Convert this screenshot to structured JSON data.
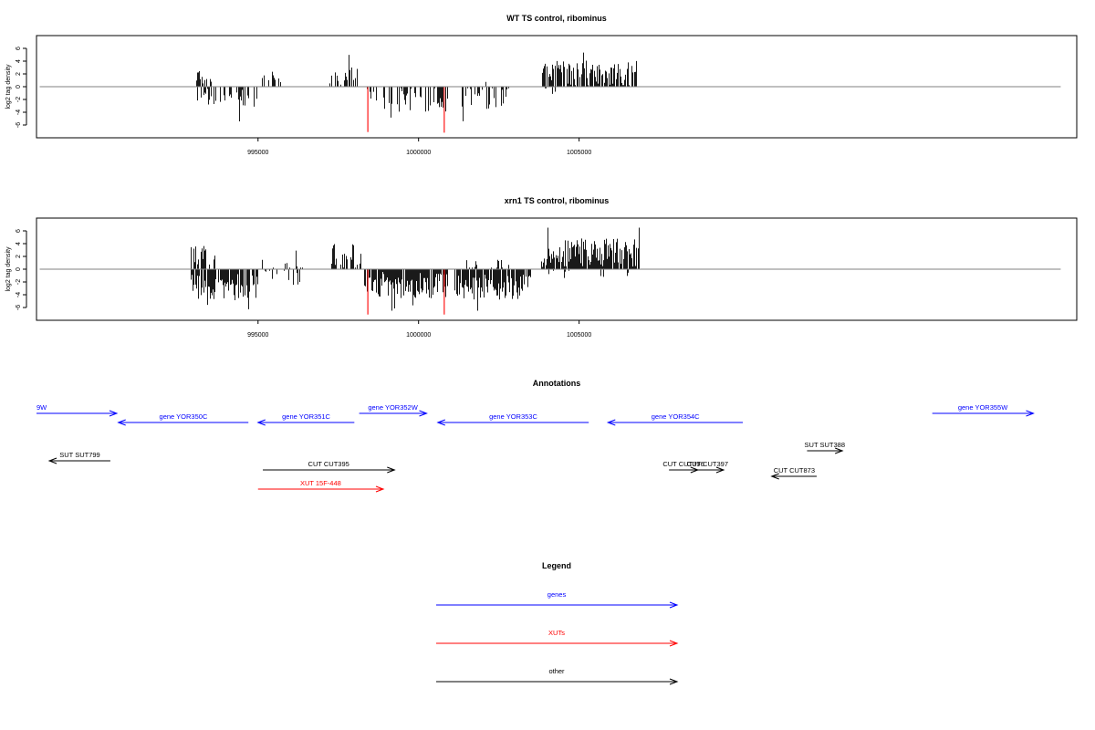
{
  "chart_data": [
    {
      "type": "bar",
      "title": "WT TS control, ribominus",
      "ylabel": "log2 tag density",
      "xlim": [
        988100,
        1020500
      ],
      "ylim": [
        -8,
        8
      ],
      "yticks": [
        -6,
        -4,
        -2,
        0,
        2,
        4,
        6
      ],
      "xticks": [
        995000,
        1000000,
        1005000
      ],
      "seed": 11,
      "highlight_color": "#ff0000",
      "bar_color": "#000000",
      "baseline_color": "#808080",
      "highlights": [
        {
          "x": 998420,
          "value": -7.1
        },
        {
          "x": 1000800,
          "value": -7.2
        }
      ],
      "regions": [
        {
          "from": 993070,
          "to": 993550,
          "mean": 1.6,
          "spread": 0.9,
          "sign": 1,
          "density": 0.55
        },
        {
          "from": 993090,
          "to": 993700,
          "mean": -1.6,
          "spread": 0.8,
          "sign": -1,
          "density": 0.3
        },
        {
          "from": 993800,
          "to": 995000,
          "mean": -1.8,
          "spread": 1.0,
          "sign": -1,
          "density": 0.45
        },
        {
          "from": 995100,
          "to": 995800,
          "mean": 1.0,
          "spread": 0.5,
          "sign": 1,
          "density": 0.2
        },
        {
          "from": 996700,
          "to": 996750,
          "mean": 1.2,
          "spread": 0.3,
          "sign": 1,
          "density": 0.5
        },
        {
          "from": 997200,
          "to": 998100,
          "mean": 1.7,
          "spread": 0.9,
          "sign": 1,
          "density": 0.6
        },
        {
          "from": 998300,
          "to": 1000900,
          "mean": -2.0,
          "spread": 1.2,
          "sign": -1,
          "density": 0.45
        },
        {
          "from": 1001300,
          "to": 1002900,
          "mean": -1.8,
          "spread": 1.1,
          "sign": -1,
          "density": 0.5
        },
        {
          "from": 1002000,
          "to": 1002100,
          "mean": 0.6,
          "spread": 0.2,
          "sign": 1,
          "density": 0.3
        },
        {
          "from": 1003800,
          "to": 1004400,
          "mean": -0.8,
          "spread": 0.5,
          "sign": -1,
          "density": 0.15
        },
        {
          "from": 1003800,
          "to": 1006800,
          "mean": 2.0,
          "spread": 1.3,
          "sign": 1,
          "density": 0.75
        }
      ]
    },
    {
      "type": "bar",
      "title": "xrn1 TS control, ribominus",
      "ylabel": "log2 tag density",
      "xlim": [
        988100,
        1020500
      ],
      "ylim": [
        -8,
        8
      ],
      "yticks": [
        -6,
        -4,
        -2,
        0,
        2,
        4,
        6
      ],
      "xticks": [
        995000,
        1000000,
        1005000
      ],
      "seed": 29,
      "highlight_color": "#ff0000",
      "bar_color": "#000000",
      "baseline_color": "#808080",
      "highlights": [
        {
          "x": 998420,
          "value": -7.1
        },
        {
          "x": 1000800,
          "value": -7.1
        }
      ],
      "regions": [
        {
          "from": 992900,
          "to": 993700,
          "mean": 2.0,
          "spread": 1.1,
          "sign": 1,
          "density": 0.6
        },
        {
          "from": 992900,
          "to": 995000,
          "mean": -2.8,
          "spread": 1.3,
          "sign": -1,
          "density": 0.8
        },
        {
          "from": 995100,
          "to": 996500,
          "mean": 1.0,
          "spread": 0.8,
          "sign": 1,
          "density": 0.25
        },
        {
          "from": 995200,
          "to": 996300,
          "mean": -1.2,
          "spread": 0.8,
          "sign": -1,
          "density": 0.25
        },
        {
          "from": 997200,
          "to": 998200,
          "mean": 2.0,
          "spread": 1.3,
          "sign": 1,
          "density": 0.65
        },
        {
          "from": 998300,
          "to": 1000900,
          "mean": -2.5,
          "spread": 1.3,
          "sign": -1,
          "density": 0.85
        },
        {
          "from": 1001100,
          "to": 1003500,
          "mean": -2.7,
          "spread": 1.3,
          "sign": -1,
          "density": 0.85
        },
        {
          "from": 1001200,
          "to": 1002800,
          "mean": 0.8,
          "spread": 0.5,
          "sign": 1,
          "density": 0.15
        },
        {
          "from": 1003800,
          "to": 1006900,
          "mean": 2.6,
          "spread": 1.4,
          "sign": 1,
          "density": 0.9
        },
        {
          "from": 1004000,
          "to": 1006900,
          "mean": -0.8,
          "spread": 0.6,
          "sign": -1,
          "density": 0.12
        }
      ]
    }
  ],
  "annotations": {
    "title": "Annotations",
    "features": [
      {
        "label": "9W",
        "color": "#0000ff",
        "from": 988100,
        "to": 990600,
        "dir": 1,
        "row": 0,
        "label_align": "start"
      },
      {
        "label": "gene YOR350C",
        "color": "#0000ff",
        "from": 990650,
        "to": 994700,
        "dir": -1,
        "row": 1
      },
      {
        "label": "gene YOR351C",
        "color": "#0000ff",
        "from": 995000,
        "to": 998000,
        "dir": -1,
        "row": 1
      },
      {
        "label": "gene YOR352W",
        "color": "#0000ff",
        "from": 998150,
        "to": 1000250,
        "dir": 1,
        "row": 0
      },
      {
        "label": "gene YOR353C",
        "color": "#0000ff",
        "from": 1000600,
        "to": 1005300,
        "dir": -1,
        "row": 1
      },
      {
        "label": "gene YOR354C",
        "color": "#0000ff",
        "from": 1005900,
        "to": 1010100,
        "dir": -1,
        "row": 1
      },
      {
        "label": "gene YOR355W",
        "color": "#0000ff",
        "from": 1016000,
        "to": 1019150,
        "dir": 1,
        "row": 0
      },
      {
        "label": "SUT SUT799",
        "color": "#000000",
        "from": 988500,
        "to": 990400,
        "dir": -1,
        "row": 2
      },
      {
        "label": "SUT SUT388",
        "color": "#000000",
        "from": 1012100,
        "to": 1013200,
        "dir": 1,
        "row": 3
      },
      {
        "label": "CUT CUT395",
        "color": "#000000",
        "from": 995150,
        "to": 999250,
        "dir": 1,
        "row": 4
      },
      {
        "label": "CUT CUT396",
        "color": "#000000",
        "from": 1007800,
        "to": 1008700,
        "dir": 1,
        "row": 4
      },
      {
        "label": "CUT CUT397",
        "color": "#000000",
        "from": 1008500,
        "to": 1009500,
        "dir": 1,
        "row": 4
      },
      {
        "label": "CUT CUT873",
        "color": "#000000",
        "from": 1011000,
        "to": 1012400,
        "dir": -1,
        "row": 5
      },
      {
        "label": "XUT 15F-448",
        "color": "#ff0000",
        "from": 995000,
        "to": 998900,
        "dir": 1,
        "row": 6
      }
    ]
  },
  "legend": {
    "title": "Legend",
    "items": [
      {
        "label": "genes",
        "color": "#0000ff"
      },
      {
        "label": "XUTs",
        "color": "#ff0000"
      },
      {
        "label": "other",
        "color": "#000000"
      }
    ]
  }
}
